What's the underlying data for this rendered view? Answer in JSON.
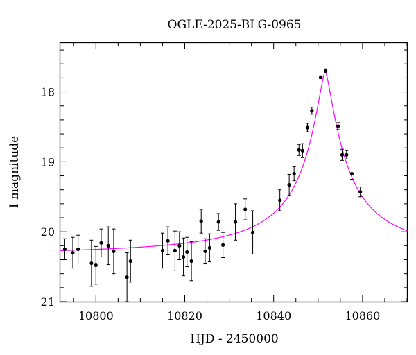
{
  "chart_data": {
    "type": "scatter",
    "title": "OGLE-2025-BLG-0965",
    "xlabel": "HJD - 2450000",
    "ylabel": "I magnitude",
    "xlim": [
      10792,
      10870
    ],
    "ylim": [
      21.0,
      17.3
    ],
    "y_inverted": true,
    "xticks": [
      10800,
      10820,
      10840,
      10860
    ],
    "yticks": [
      18,
      19,
      20,
      21
    ],
    "grid": false,
    "legend": "none",
    "series": [
      {
        "kind": "points_with_errorbars",
        "color": "#000000",
        "points": [
          {
            "x": 10793.0,
            "y": 20.25,
            "err": 0.15
          },
          {
            "x": 10794.8,
            "y": 20.3,
            "err": 0.22
          },
          {
            "x": 10796.0,
            "y": 20.25,
            "err": 0.2
          },
          {
            "x": 10799.0,
            "y": 20.45,
            "err": 0.33
          },
          {
            "x": 10800.0,
            "y": 20.48,
            "err": 0.27
          },
          {
            "x": 10801.2,
            "y": 20.16,
            "err": 0.2
          },
          {
            "x": 10802.8,
            "y": 20.2,
            "err": 0.27
          },
          {
            "x": 10804.0,
            "y": 20.28,
            "err": 0.32
          },
          {
            "x": 10807.0,
            "y": 20.65,
            "err": 0.35
          },
          {
            "x": 10807.8,
            "y": 20.42,
            "err": 0.3
          },
          {
            "x": 10815.0,
            "y": 20.27,
            "err": 0.25
          },
          {
            "x": 10816.2,
            "y": 20.13,
            "err": 0.2
          },
          {
            "x": 10817.8,
            "y": 20.27,
            "err": 0.28
          },
          {
            "x": 10818.8,
            "y": 20.2,
            "err": 0.2
          },
          {
            "x": 10819.7,
            "y": 20.36,
            "err": 0.27
          },
          {
            "x": 10820.5,
            "y": 20.29,
            "err": 0.21
          },
          {
            "x": 10821.5,
            "y": 20.42,
            "err": 0.28
          },
          {
            "x": 10823.7,
            "y": 19.85,
            "err": 0.17
          },
          {
            "x": 10824.6,
            "y": 20.28,
            "err": 0.18
          },
          {
            "x": 10825.6,
            "y": 20.23,
            "err": 0.2
          },
          {
            "x": 10827.6,
            "y": 19.86,
            "err": 0.12
          },
          {
            "x": 10828.6,
            "y": 20.19,
            "err": 0.18
          },
          {
            "x": 10831.4,
            "y": 19.86,
            "err": 0.26
          },
          {
            "x": 10833.6,
            "y": 19.68,
            "err": 0.15
          },
          {
            "x": 10835.3,
            "y": 20.01,
            "err": 0.31
          },
          {
            "x": 10841.4,
            "y": 19.55,
            "err": 0.15
          },
          {
            "x": 10843.5,
            "y": 19.33,
            "err": 0.15
          },
          {
            "x": 10844.6,
            "y": 19.17,
            "err": 0.1
          },
          {
            "x": 10845.7,
            "y": 18.83,
            "err": 0.08
          },
          {
            "x": 10846.5,
            "y": 18.84,
            "err": 0.1
          },
          {
            "x": 10847.6,
            "y": 18.51,
            "err": 0.06
          },
          {
            "x": 10848.6,
            "y": 18.27,
            "err": 0.05
          },
          {
            "x": 10850.6,
            "y": 17.79,
            "err": 0.02
          },
          {
            "x": 10851.7,
            "y": 17.7,
            "err": 0.03
          },
          {
            "x": 10854.5,
            "y": 18.49,
            "err": 0.05
          },
          {
            "x": 10855.4,
            "y": 18.9,
            "err": 0.08
          },
          {
            "x": 10856.4,
            "y": 18.9,
            "err": 0.06
          },
          {
            "x": 10857.6,
            "y": 19.17,
            "err": 0.08
          },
          {
            "x": 10859.5,
            "y": 19.43,
            "err": 0.07
          }
        ]
      },
      {
        "kind": "model_curve",
        "color": "#ff00ff",
        "model": {
          "baseline": 20.35,
          "peak_x": 10851.6,
          "peak_y": 17.7,
          "half_width": 5.6,
          "exponent": 1.4,
          "blend_ratio": 2.2
        }
      }
    ]
  }
}
